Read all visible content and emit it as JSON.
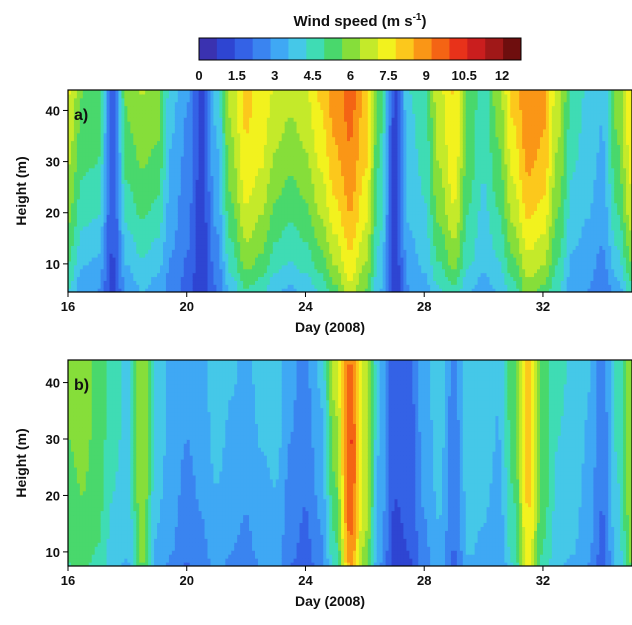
{
  "colorbar": {
    "title": "Wind speed (m s",
    "title_sup": "-1",
    "title_end": ")",
    "min": 0,
    "max": 12.75,
    "step": 0.75,
    "labels": [
      "0",
      "1.5",
      "3",
      "4.5",
      "6",
      "7.5",
      "9",
      "10.5",
      "12"
    ],
    "colors": [
      "#3a32b0",
      "#2e45d2",
      "#3462e6",
      "#3a84f0",
      "#3fa8f4",
      "#45c8e8",
      "#3fdcb4",
      "#49d86c",
      "#86de3a",
      "#c4ea2a",
      "#f2f21e",
      "#fcc81c",
      "#fa9616",
      "#f46414",
      "#e8321a",
      "#ca1e1e",
      "#a01818",
      "#6e0e0e"
    ]
  },
  "chart_data": [
    {
      "type": "heatmap",
      "panel_label": "a)",
      "xlabel": "Day (2008)",
      "ylabel": "Height (m)",
      "xlim": [
        16,
        35
      ],
      "ylim": [
        4.5,
        44
      ],
      "x_ticks": [
        "16",
        "20",
        "24",
        "28",
        "32"
      ],
      "y_ticks": [
        "10",
        "20",
        "30",
        "40"
      ],
      "heights": [
        5,
        10,
        20,
        30,
        40,
        44
      ],
      "profiles": [
        {
          "day": 16.0,
          "speeds": [
            4.5,
            5.2,
            6.2,
            6.8,
            7.4,
            7.6
          ]
        },
        {
          "day": 16.5,
          "speeds": [
            3.2,
            3.8,
            4.8,
            5.4,
            5.9,
            6.0
          ]
        },
        {
          "day": 17.0,
          "speeds": [
            3.0,
            3.6,
            4.6,
            5.3,
            5.9,
            6.0
          ]
        },
        {
          "day": 17.5,
          "speeds": [
            1.2,
            1.4,
            1.6,
            1.8,
            1.9,
            2.0
          ]
        },
        {
          "day": 18.0,
          "speeds": [
            3.2,
            3.8,
            4.8,
            5.6,
            6.1,
            6.2
          ]
        },
        {
          "day": 18.5,
          "speeds": [
            3.8,
            4.4,
            5.4,
            6.1,
            6.6,
            6.8
          ]
        },
        {
          "day": 19.0,
          "speeds": [
            3.4,
            4.0,
            5.0,
            5.8,
            6.4,
            6.5
          ]
        },
        {
          "day": 19.5,
          "speeds": [
            2.6,
            2.9,
            3.3,
            3.6,
            3.9,
            4.0
          ]
        },
        {
          "day": 20.0,
          "speeds": [
            2.0,
            2.2,
            2.5,
            2.8,
            3.0,
            3.1
          ]
        },
        {
          "day": 20.5,
          "speeds": [
            0.8,
            0.9,
            1.1,
            1.2,
            1.3,
            1.3
          ]
        },
        {
          "day": 21.0,
          "speeds": [
            2.2,
            2.6,
            3.2,
            3.6,
            3.9,
            4.0
          ]
        },
        {
          "day": 21.5,
          "speeds": [
            4.0,
            4.8,
            5.8,
            6.5,
            6.9,
            7.0
          ]
        },
        {
          "day": 22.0,
          "speeds": [
            5.2,
            6.2,
            7.4,
            8.1,
            8.4,
            8.5
          ]
        },
        {
          "day": 22.5,
          "speeds": [
            4.8,
            5.8,
            6.8,
            7.6,
            7.9,
            8.0
          ]
        },
        {
          "day": 23.0,
          "speeds": [
            3.8,
            4.8,
            5.8,
            6.6,
            7.2,
            7.4
          ]
        },
        {
          "day": 23.5,
          "speeds": [
            3.6,
            4.4,
            5.4,
            6.2,
            6.8,
            7.0
          ]
        },
        {
          "day": 24.0,
          "speeds": [
            4.0,
            4.8,
            5.8,
            6.6,
            7.2,
            7.4
          ]
        },
        {
          "day": 24.5,
          "speeds": [
            4.6,
            5.6,
            6.8,
            7.6,
            8.2,
            8.4
          ]
        },
        {
          "day": 25.0,
          "speeds": [
            5.8,
            6.8,
            8.0,
            8.8,
            9.3,
            9.4
          ]
        },
        {
          "day": 25.5,
          "speeds": [
            7.2,
            8.0,
            9.0,
            9.6,
            10.0,
            10.1
          ]
        },
        {
          "day": 26.0,
          "speeds": [
            6.0,
            6.8,
            7.8,
            8.4,
            8.8,
            8.9
          ]
        },
        {
          "day": 26.5,
          "speeds": [
            3.8,
            4.2,
            4.8,
            5.2,
            5.5,
            5.6
          ]
        },
        {
          "day": 27.0,
          "speeds": [
            0.9,
            1.0,
            1.2,
            1.3,
            1.4,
            1.4
          ]
        },
        {
          "day": 27.5,
          "speeds": [
            3.0,
            3.4,
            3.9,
            4.2,
            4.4,
            4.5
          ]
        },
        {
          "day": 28.0,
          "speeds": [
            3.4,
            3.9,
            4.4,
            4.7,
            4.9,
            5.0
          ]
        },
        {
          "day": 28.5,
          "speeds": [
            4.4,
            5.2,
            6.2,
            6.8,
            7.2,
            7.3
          ]
        },
        {
          "day": 29.0,
          "speeds": [
            5.0,
            6.2,
            7.4,
            8.0,
            8.2,
            8.3
          ]
        },
        {
          "day": 29.5,
          "speeds": [
            3.8,
            4.6,
            5.2,
            5.6,
            5.8,
            5.9
          ]
        },
        {
          "day": 30.0,
          "speeds": [
            3.4,
            3.9,
            4.3,
            4.6,
            4.7,
            4.8
          ]
        },
        {
          "day": 30.5,
          "speeds": [
            3.8,
            4.4,
            5.2,
            5.8,
            6.3,
            6.5
          ]
        },
        {
          "day": 31.0,
          "speeds": [
            4.8,
            5.8,
            7.0,
            7.8,
            8.4,
            8.6
          ]
        },
        {
          "day": 31.5,
          "speeds": [
            6.4,
            7.2,
            8.4,
            9.2,
            9.6,
            9.7
          ]
        },
        {
          "day": 32.0,
          "speeds": [
            5.8,
            6.8,
            8.0,
            8.8,
            9.2,
            9.3
          ]
        },
        {
          "day": 32.5,
          "speeds": [
            4.6,
            5.2,
            6.0,
            6.6,
            7.0,
            7.1
          ]
        },
        {
          "day": 33.0,
          "speeds": [
            3.2,
            3.6,
            4.2,
            4.6,
            4.9,
            5.0
          ]
        },
        {
          "day": 33.5,
          "speeds": [
            3.0,
            3.3,
            3.8,
            4.1,
            4.3,
            4.4
          ]
        },
        {
          "day": 34.0,
          "speeds": [
            2.4,
            2.8,
            3.3,
            3.6,
            3.8,
            3.9
          ]
        },
        {
          "day": 34.5,
          "speeds": [
            3.4,
            4.2,
            5.2,
            5.8,
            6.2,
            6.3
          ]
        },
        {
          "day": 35.0,
          "speeds": [
            5.0,
            6.0,
            7.2,
            7.8,
            8.2,
            8.3
          ]
        }
      ]
    },
    {
      "type": "heatmap",
      "panel_label": "b)",
      "xlabel": "Day (2008)",
      "ylabel": "Height (m)",
      "xlim": [
        16,
        35
      ],
      "ylim": [
        7.5,
        44
      ],
      "x_ticks": [
        "16",
        "20",
        "24",
        "28",
        "32"
      ],
      "y_ticks": [
        "10",
        "20",
        "30",
        "40"
      ],
      "heights": [
        7.5,
        10,
        20,
        30,
        40,
        44
      ],
      "profiles": [
        {
          "day": 16.0,
          "speeds": [
            5.2,
            5.4,
            5.8,
            6.0,
            6.0,
            6.0
          ]
        },
        {
          "day": 16.5,
          "speeds": [
            5.4,
            5.6,
            6.0,
            6.2,
            6.2,
            6.2
          ]
        },
        {
          "day": 17.0,
          "speeds": [
            5.0,
            5.2,
            5.6,
            5.8,
            5.8,
            5.8
          ]
        },
        {
          "day": 17.5,
          "speeds": [
            4.0,
            4.2,
            4.5,
            4.7,
            4.7,
            4.7
          ]
        },
        {
          "day": 18.0,
          "speeds": [
            3.6,
            3.8,
            4.1,
            4.3,
            4.3,
            4.3
          ]
        },
        {
          "day": 18.5,
          "speeds": [
            6.0,
            6.2,
            6.6,
            6.8,
            6.8,
            6.8
          ]
        },
        {
          "day": 19.0,
          "speeds": [
            3.4,
            3.6,
            3.9,
            4.1,
            4.2,
            4.2
          ]
        },
        {
          "day": 19.5,
          "speeds": [
            2.8,
            3.0,
            3.3,
            3.5,
            3.6,
            3.6
          ]
        },
        {
          "day": 20.0,
          "speeds": [
            2.2,
            2.4,
            2.7,
            3.0,
            3.1,
            3.1
          ]
        },
        {
          "day": 20.5,
          "speeds": [
            2.6,
            2.8,
            3.1,
            3.4,
            3.5,
            3.5
          ]
        },
        {
          "day": 21.0,
          "speeds": [
            3.2,
            3.4,
            3.7,
            4.0,
            4.1,
            4.1
          ]
        },
        {
          "day": 21.5,
          "speeds": [
            2.8,
            3.0,
            3.3,
            3.6,
            3.8,
            3.8
          ]
        },
        {
          "day": 22.0,
          "speeds": [
            2.6,
            2.8,
            3.1,
            3.4,
            3.6,
            3.6
          ]
        },
        {
          "day": 22.5,
          "speeds": [
            3.0,
            3.2,
            3.5,
            3.8,
            3.9,
            3.9
          ]
        },
        {
          "day": 23.0,
          "speeds": [
            3.2,
            3.4,
            3.7,
            4.0,
            4.1,
            4.1
          ]
        },
        {
          "day": 23.5,
          "speeds": [
            2.2,
            2.4,
            2.7,
            3.0,
            3.1,
            3.1
          ]
        },
        {
          "day": 24.0,
          "speeds": [
            1.8,
            2.0,
            2.3,
            2.6,
            2.8,
            2.8
          ]
        },
        {
          "day": 24.5,
          "speeds": [
            2.6,
            2.8,
            3.2,
            3.5,
            3.8,
            3.9
          ]
        },
        {
          "day": 25.0,
          "speeds": [
            4.6,
            5.0,
            5.8,
            6.4,
            7.0,
            7.2
          ]
        },
        {
          "day": 25.5,
          "speeds": [
            9.0,
            9.6,
            10.4,
            10.6,
            10.0,
            9.8
          ]
        },
        {
          "day": 26.0,
          "speeds": [
            6.2,
            6.6,
            7.2,
            7.4,
            7.2,
            7.0
          ]
        },
        {
          "day": 26.5,
          "speeds": [
            3.0,
            3.2,
            3.5,
            3.7,
            3.8,
            3.8
          ]
        },
        {
          "day": 27.0,
          "speeds": [
            1.2,
            1.3,
            1.5,
            1.6,
            1.7,
            1.7
          ]
        },
        {
          "day": 27.5,
          "speeds": [
            1.4,
            1.5,
            1.7,
            1.8,
            2.0,
            2.0
          ]
        },
        {
          "day": 28.0,
          "speeds": [
            2.6,
            2.8,
            3.1,
            3.3,
            3.5,
            3.5
          ]
        },
        {
          "day": 28.5,
          "speeds": [
            3.4,
            3.6,
            3.9,
            4.1,
            4.2,
            4.2
          ]
        },
        {
          "day": 29.0,
          "speeds": [
            2.0,
            2.2,
            2.4,
            2.6,
            2.7,
            2.7
          ]
        },
        {
          "day": 29.5,
          "speeds": [
            3.6,
            3.8,
            4.1,
            4.3,
            4.4,
            4.4
          ]
        },
        {
          "day": 30.0,
          "speeds": [
            3.4,
            3.6,
            3.9,
            4.1,
            4.2,
            4.2
          ]
        },
        {
          "day": 30.5,
          "speeds": [
            3.0,
            3.2,
            3.5,
            3.7,
            3.8,
            3.8
          ]
        },
        {
          "day": 31.0,
          "speeds": [
            4.4,
            4.8,
            5.2,
            5.6,
            5.8,
            5.8
          ]
        },
        {
          "day": 31.5,
          "speeds": [
            7.8,
            8.0,
            8.4,
            8.6,
            8.6,
            8.6
          ]
        },
        {
          "day": 32.0,
          "speeds": [
            5.0,
            5.2,
            5.6,
            5.8,
            5.8,
            5.8
          ]
        },
        {
          "day": 32.5,
          "speeds": [
            3.8,
            4.0,
            4.3,
            4.5,
            4.6,
            4.6
          ]
        },
        {
          "day": 33.0,
          "speeds": [
            3.6,
            3.8,
            4.1,
            4.3,
            4.4,
            4.4
          ]
        },
        {
          "day": 33.5,
          "speeds": [
            3.0,
            3.2,
            3.5,
            3.7,
            3.8,
            3.8
          ]
        },
        {
          "day": 34.0,
          "speeds": [
            1.8,
            2.0,
            2.3,
            2.5,
            2.6,
            2.6
          ]
        },
        {
          "day": 34.5,
          "speeds": [
            3.8,
            4.0,
            4.4,
            4.6,
            4.7,
            4.7
          ]
        },
        {
          "day": 35.0,
          "speeds": [
            6.0,
            6.2,
            6.6,
            6.8,
            6.8,
            6.8
          ]
        }
      ]
    }
  ]
}
